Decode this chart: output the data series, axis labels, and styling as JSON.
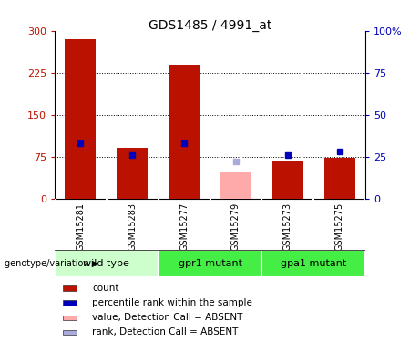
{
  "title": "GDS1485 / 4991_at",
  "samples": [
    "GSM15281",
    "GSM15283",
    "GSM15277",
    "GSM15279",
    "GSM15273",
    "GSM15275"
  ],
  "count_values": [
    285,
    90,
    240,
    null,
    68,
    72
  ],
  "count_absent": [
    null,
    null,
    null,
    47,
    null,
    null
  ],
  "percentile_values": [
    33,
    26,
    33,
    null,
    26,
    28
  ],
  "percentile_absent": [
    null,
    null,
    null,
    22,
    null,
    null
  ],
  "groups": [
    {
      "label": "wild type",
      "samples": [
        0,
        1
      ],
      "color": "#ccffcc"
    },
    {
      "label": "gpr1 mutant",
      "samples": [
        2,
        3
      ],
      "color": "#44ee44"
    },
    {
      "label": "gpa1 mutant",
      "samples": [
        4,
        5
      ],
      "color": "#44ee44"
    }
  ],
  "ylim_left": [
    0,
    300
  ],
  "ylim_right": [
    0,
    100
  ],
  "yticks_left": [
    0,
    75,
    150,
    225,
    300
  ],
  "ytick_labels_left": [
    "0",
    "75",
    "150",
    "225",
    "300"
  ],
  "yticks_right": [
    0,
    25,
    50,
    75,
    100
  ],
  "ytick_labels_right": [
    "0",
    "25",
    "50",
    "75",
    "100%"
  ],
  "bar_color_present": "#bb1100",
  "bar_color_absent": "#ffaaaa",
  "dot_color_present": "#0000bb",
  "dot_color_absent": "#aaaadd",
  "bar_width": 0.6,
  "background_color": "#ffffff",
  "plot_bg_color": "#ffffff",
  "cell_bg_color": "#cccccc",
  "legend_items": [
    {
      "color": "#bb1100",
      "label": "count"
    },
    {
      "color": "#0000bb",
      "label": "percentile rank within the sample"
    },
    {
      "color": "#ffaaaa",
      "label": "value, Detection Call = ABSENT"
    },
    {
      "color": "#aaaadd",
      "label": "rank, Detection Call = ABSENT"
    }
  ]
}
